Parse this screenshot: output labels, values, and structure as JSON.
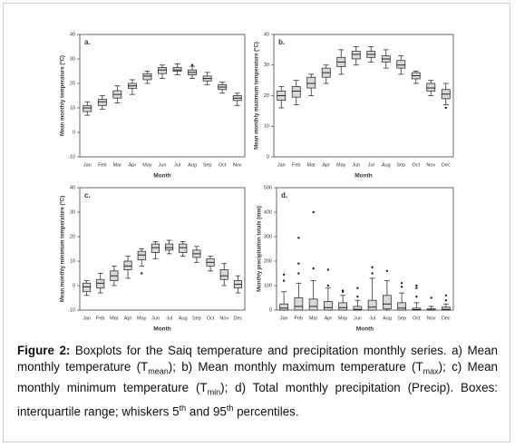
{
  "chart_data": [
    {
      "type": "box",
      "label": "a.",
      "ylabel": "Mean monthly temperature (°C)",
      "xlabel": "Month",
      "categories": [
        "Jan",
        "Feb",
        "Mar",
        "Apr",
        "May",
        "Jun",
        "Jul",
        "Aug",
        "Sep",
        "Oct",
        "Nov"
      ],
      "boxes": [
        {
          "whislo": 7,
          "q1": 8.5,
          "med": 10,
          "q3": 11,
          "whishi": 12.5
        },
        {
          "whislo": 9.5,
          "q1": 11,
          "med": 12.5,
          "q3": 13.5,
          "whishi": 15
        },
        {
          "whislo": 12,
          "q1": 14,
          "med": 15.5,
          "q3": 17,
          "whishi": 19
        },
        {
          "whislo": 15.5,
          "q1": 18,
          "med": 19,
          "q3": 20,
          "whishi": 21.5
        },
        {
          "whislo": 20,
          "q1": 21.5,
          "med": 23,
          "q3": 24,
          "whishi": 25
        },
        {
          "whislo": 22,
          "q1": 24,
          "med": 25.5,
          "q3": 26.5,
          "whishi": 27.5
        },
        {
          "whislo": 23.5,
          "q1": 25,
          "med": 25.5,
          "q3": 26.5,
          "whishi": 28
        },
        {
          "whislo": 22,
          "q1": 23.5,
          "med": 24.5,
          "q3": 25.5,
          "whishi": 27,
          "outliers": [
            27.5
          ]
        },
        {
          "whislo": 19.5,
          "q1": 21,
          "med": 22,
          "q3": 23,
          "whishi": 24.5
        },
        {
          "whislo": 16,
          "q1": 17.5,
          "med": 18.5,
          "q3": 19.5,
          "whishi": 20.5
        },
        {
          "whislo": 11,
          "q1": 13,
          "med": 14,
          "q3": 15,
          "whishi": 16
        }
      ],
      "ylim": [
        -10,
        40
      ],
      "yticks": [
        -10,
        0,
        10,
        20,
        30,
        40
      ],
      "color": "#d9d9d9"
    },
    {
      "type": "box",
      "label": "b.",
      "ylabel": "Mean monthly maximum temperature (°C)",
      "xlabel": "Month",
      "categories": [
        "Jan",
        "Feb",
        "Mar",
        "Apr",
        "May",
        "Jun",
        "Jul",
        "Aug",
        "Sep",
        "Oct",
        "Nov",
        "Dec"
      ],
      "boxes": [
        {
          "whislo": 16,
          "q1": 18.5,
          "med": 20,
          "q3": 21.5,
          "whishi": 23
        },
        {
          "whislo": 17,
          "q1": 19.5,
          "med": 21.5,
          "q3": 23,
          "whishi": 25
        },
        {
          "whislo": 20,
          "q1": 22.5,
          "med": 24,
          "q3": 26,
          "whishi": 27
        },
        {
          "whislo": 24,
          "q1": 26,
          "med": 27.5,
          "q3": 29,
          "whishi": 30
        },
        {
          "whislo": 27,
          "q1": 29.5,
          "med": 31,
          "q3": 32.5,
          "whishi": 35
        },
        {
          "whislo": 30,
          "q1": 32,
          "med": 33.5,
          "q3": 34.5,
          "whishi": 36
        },
        {
          "whislo": 31,
          "q1": 32.5,
          "med": 33.5,
          "q3": 34.5,
          "whishi": 36
        },
        {
          "whislo": 29,
          "q1": 31,
          "med": 32,
          "q3": 33,
          "whishi": 35
        },
        {
          "whislo": 27,
          "q1": 29,
          "med": 30,
          "q3": 31.5,
          "whishi": 33
        },
        {
          "whislo": 24,
          "q1": 25.5,
          "med": 26.5,
          "q3": 27.5,
          "whishi": 28
        },
        {
          "whislo": 20,
          "q1": 21.5,
          "med": 22.5,
          "q3": 24,
          "whishi": 25
        },
        {
          "whislo": 17,
          "q1": 19,
          "med": 20.5,
          "q3": 22,
          "whishi": 24,
          "outliers": [
            16
          ]
        }
      ],
      "ylim": [
        0,
        40
      ],
      "yticks": [
        0,
        10,
        20,
        30,
        40
      ],
      "color": "#d9d9d9"
    },
    {
      "type": "box",
      "label": "c.",
      "ylabel": "Mean monthly minimum temperature (°C)",
      "xlabel": "Month",
      "categories": [
        "Jan",
        "Feb",
        "Mar",
        "Apr",
        "May",
        "Jun",
        "Jul",
        "Aug",
        "Sep",
        "Oct",
        "Nov",
        "Dec"
      ],
      "boxes": [
        {
          "whislo": -4,
          "q1": -2.5,
          "med": -0.5,
          "q3": 1,
          "whishi": 2
        },
        {
          "whislo": -3,
          "q1": -1,
          "med": 1,
          "q3": 2.5,
          "whishi": 5
        },
        {
          "whislo": 0,
          "q1": 2,
          "med": 4,
          "q3": 6,
          "whishi": 8
        },
        {
          "whislo": 3,
          "q1": 6.5,
          "med": 8,
          "q3": 10,
          "whishi": 12
        },
        {
          "whislo": 8,
          "q1": 10.5,
          "med": 12.5,
          "q3": 14,
          "whishi": 15,
          "outliers": [
            5
          ]
        },
        {
          "whislo": 11,
          "q1": 13.5,
          "med": 15.5,
          "q3": 17,
          "whishi": 18
        },
        {
          "whislo": 13,
          "q1": 14.5,
          "med": 15.5,
          "q3": 17,
          "whishi": 18.5
        },
        {
          "whislo": 12,
          "q1": 13.5,
          "med": 15.5,
          "q3": 17,
          "whishi": 18
        },
        {
          "whislo": 9.5,
          "q1": 11.5,
          "med": 13,
          "q3": 14.5,
          "whishi": 16
        },
        {
          "whislo": 6,
          "q1": 8,
          "med": 9.5,
          "q3": 11,
          "whishi": 12
        },
        {
          "whislo": 0,
          "q1": 2.5,
          "med": 4,
          "q3": 6.5,
          "whishi": 9
        },
        {
          "whislo": -3,
          "q1": -1,
          "med": 0.5,
          "q3": 2,
          "whishi": 4
        }
      ],
      "ylim": [
        -10,
        40
      ],
      "yticks": [
        -10,
        0,
        10,
        20,
        30,
        40
      ],
      "color": "#d9d9d9"
    },
    {
      "type": "box",
      "label": "d.",
      "ylabel": "Monthly precipitation totals (mm)",
      "xlabel": "Month",
      "categories": [
        "Jan",
        "Feb",
        "Mar",
        "Apr",
        "May",
        "Jun",
        "Jul",
        "Aug",
        "Sep",
        "Oct",
        "Nov",
        "Dec"
      ],
      "boxes": [
        {
          "whislo": 0,
          "q1": 0,
          "med": 8,
          "q3": 25,
          "whishi": 75,
          "outliers": [
            120,
            145
          ]
        },
        {
          "whislo": 0,
          "q1": 0,
          "med": 15,
          "q3": 50,
          "whishi": 110,
          "outliers": [
            150,
            190,
            295
          ]
        },
        {
          "whislo": 0,
          "q1": 0,
          "med": 15,
          "q3": 45,
          "whishi": 120,
          "outliers": [
            170,
            400
          ]
        },
        {
          "whislo": 0,
          "q1": 0,
          "med": 10,
          "q3": 35,
          "whishi": 90,
          "outliers": [
            100,
            165
          ]
        },
        {
          "whislo": 0,
          "q1": 0,
          "med": 10,
          "q3": 30,
          "whishi": 60,
          "outliers": [
            75,
            80
          ]
        },
        {
          "whislo": 0,
          "q1": 0,
          "med": 3,
          "q3": 15,
          "whishi": 40,
          "outliers": [
            55,
            90
          ]
        },
        {
          "whislo": 0,
          "q1": 0,
          "med": 12,
          "q3": 40,
          "whishi": 130,
          "outliers": [
            150,
            175
          ]
        },
        {
          "whislo": 0,
          "q1": 5,
          "med": 25,
          "q3": 60,
          "whishi": 120,
          "outliers": [
            160
          ]
        },
        {
          "whislo": 0,
          "q1": 0,
          "med": 8,
          "q3": 30,
          "whishi": 70,
          "outliers": [
            95,
            110
          ]
        },
        {
          "whislo": 0,
          "q1": 0,
          "med": 2,
          "q3": 8,
          "whishi": 30,
          "outliers": [
            55,
            90,
            100
          ]
        },
        {
          "whislo": 0,
          "q1": 0,
          "med": 1,
          "q3": 5,
          "whishi": 15,
          "outliers": [
            50
          ]
        },
        {
          "whislo": 0,
          "q1": 0,
          "med": 3,
          "q3": 12,
          "whishi": 25,
          "outliers": [
            40,
            60
          ]
        }
      ],
      "ylim": [
        0,
        500
      ],
      "yticks": [
        0,
        100,
        200,
        300,
        400,
        500
      ],
      "color": "#d9d9d9"
    }
  ],
  "caption": {
    "label": "Figure 2:",
    "parts": [
      {
        "text": " Boxplots for the Saiq temperature and precipitation monthly series. a) Mean monthly temperature (T"
      },
      {
        "text": "mean",
        "style": "sub"
      },
      {
        "text": "); b) Mean monthly maximum temperature (T"
      },
      {
        "text": "max",
        "style": "sub"
      },
      {
        "text": "); c) Mean monthly minimum temperature (T"
      },
      {
        "text": "min",
        "style": "sub"
      },
      {
        "text": "); d) Total monthly precipitation (Precip). Boxes: interquartile range; whiskers 5"
      },
      {
        "text": "th",
        "style": "sup"
      },
      {
        "text": " and 95"
      },
      {
        "text": "th",
        "style": "sup"
      },
      {
        "text": " percentiles."
      }
    ]
  }
}
